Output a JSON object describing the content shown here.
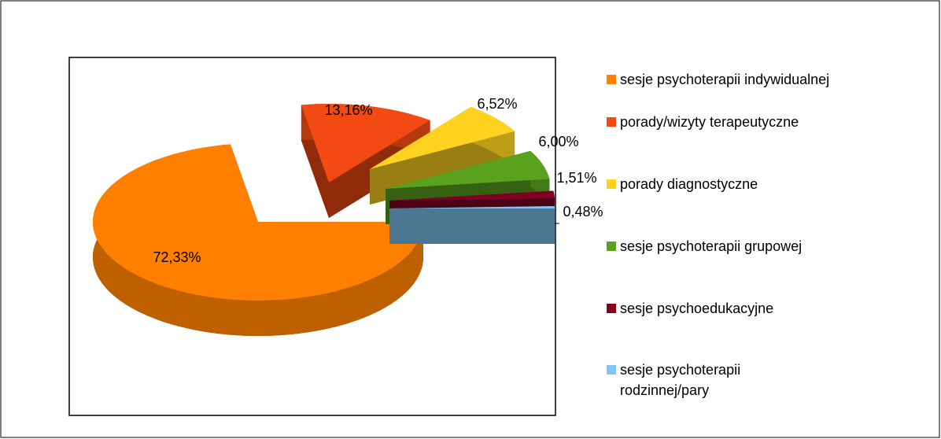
{
  "chart_data": {
    "type": "pie",
    "categories": [
      "sesje psychoterapii indywidualnej",
      "porady/wizyty terapeutyczne",
      "porady diagnostyczne",
      "sesje psychoterapii grupowej",
      "sesje psychoedukacyjne",
      "sesje psychoterapii rodzinnej/pary"
    ],
    "values": [
      72.33,
      13.16,
      6.52,
      6.0,
      1.51,
      0.48
    ],
    "value_labels": [
      "72,33%",
      "13,16%",
      "6,52%",
      "6,00%",
      "1,51%",
      "0,48%"
    ],
    "colors": [
      "#ff8000",
      "#f24a12",
      "#ffd21f",
      "#5aa11e",
      "#800025",
      "#7fc6f3"
    ]
  }
}
